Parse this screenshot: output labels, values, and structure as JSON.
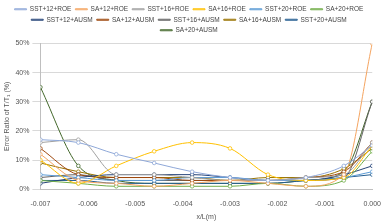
{
  "chart_data": {
    "type": "line",
    "x_label": "x/L(m)",
    "y_label": "Error Ratio of T/T₁ (%)",
    "x": [
      -0.007,
      -0.0062,
      -0.0054,
      -0.0046,
      -0.0038,
      -0.003,
      -0.0022,
      -0.0014,
      -0.0006,
      0
    ],
    "series": [
      {
        "name": "SST+12+ROE",
        "color": "#8fa8d8",
        "marker": "circle",
        "values": [
          17,
          16,
          12,
          9,
          6,
          4,
          3,
          4,
          8,
          15
        ]
      },
      {
        "name": "SA+12+ROE",
        "color": "#f4a460",
        "marker": "circle",
        "values": [
          12,
          3,
          2,
          1,
          2,
          3,
          2,
          1,
          5,
          50
        ]
      },
      {
        "name": "SST+16+ROE",
        "color": "#a0a0a0",
        "marker": "circle",
        "values": [
          16,
          17,
          5,
          5,
          4,
          3,
          3,
          4,
          5,
          16
        ]
      },
      {
        "name": "SA+16+ROE",
        "color": "#ffc000",
        "marker": "circle",
        "values": [
          10,
          2,
          8,
          13,
          16,
          14,
          5,
          3,
          4,
          15
        ]
      },
      {
        "name": "SST+20+ROE",
        "color": "#5b9bd5",
        "marker": "circle",
        "values": [
          5,
          4,
          3,
          3,
          4,
          4,
          3,
          3,
          4,
          6
        ]
      },
      {
        "name": "SA+20+ROE",
        "color": "#70ad47",
        "marker": "circle",
        "values": [
          3,
          2,
          1,
          1,
          1,
          1,
          2,
          1,
          3,
          13
        ]
      },
      {
        "name": "SST+12+AUSM",
        "color": "#264478",
        "marker": "circle",
        "values": [
          2,
          4,
          5,
          5,
          5,
          4,
          3,
          3,
          5,
          8
        ]
      },
      {
        "name": "SA+12+AUSM",
        "color": "#9e480e",
        "marker": "circle",
        "values": [
          14,
          5,
          4,
          4,
          3,
          3,
          3,
          4,
          6,
          16
        ]
      },
      {
        "name": "SST+16+AUSM",
        "color": "#636363",
        "marker": "circle",
        "values": [
          4,
          5,
          3,
          3,
          3,
          3,
          3,
          3,
          4,
          30
        ]
      },
      {
        "name": "SA+16+AUSM",
        "color": "#997300",
        "marker": "circle",
        "values": [
          9,
          6,
          4,
          4,
          4,
          3,
          4,
          4,
          7,
          14
        ]
      },
      {
        "name": "SST+20+AUSM",
        "color": "#255e91",
        "marker": "circle",
        "values": [
          3,
          3,
          2,
          2,
          2,
          2,
          2,
          3,
          4,
          5
        ]
      },
      {
        "name": "SA+20+AUSM",
        "color": "#43682b",
        "marker": "circle",
        "values": [
          35,
          8,
          3,
          2,
          2,
          2,
          2,
          3,
          6,
          30
        ]
      }
    ],
    "xlim": [
      -0.007,
      0
    ],
    "xticks": [
      -0.007,
      -0.006,
      -0.005,
      -0.004,
      -0.003,
      -0.002,
      -0.001,
      {
        "value": 0,
        "label": "0.000"
      }
    ],
    "ylim": [
      0,
      50
    ],
    "yticks": [
      {
        "value": 0,
        "label": "0%"
      },
      {
        "value": 10,
        "label": "10%"
      },
      {
        "value": 20,
        "label": "20%"
      },
      {
        "value": 30,
        "label": "30%"
      },
      {
        "value": 40,
        "label": "40%"
      },
      {
        "value": 50,
        "label": "50%"
      }
    ],
    "grid": true,
    "legend": "top"
  }
}
